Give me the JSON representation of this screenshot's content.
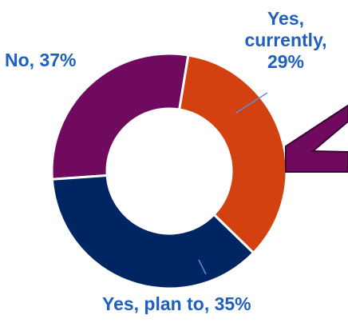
{
  "colors": {
    "text": "#1F5FBF",
    "yes_currently": "#6F0A5E",
    "yes_plan": "#D2410F",
    "no": "#002563",
    "leader": "#5F8FDF",
    "arrow": "#6F0A5E"
  },
  "labels": {
    "yes_currently_line1": "Yes,",
    "yes_currently_line2": "currently,",
    "yes_currently_line3": "29%",
    "no": "No, 37%",
    "yes_plan": "Yes, plan to, 35%"
  },
  "chart_data": {
    "type": "pie",
    "variant": "donut",
    "title": "",
    "slices": [
      {
        "label": "Yes, currently",
        "value": 29,
        "color": "#6F0A5E"
      },
      {
        "label": "Yes, plan to",
        "value": 35,
        "color": "#D2410F"
      },
      {
        "label": "No",
        "value": 37,
        "color": "#002563"
      }
    ],
    "legend": "none",
    "data_labels": [
      "Yes, currently, 29%",
      "No, 37%",
      "Yes, plan to, 35%"
    ]
  }
}
